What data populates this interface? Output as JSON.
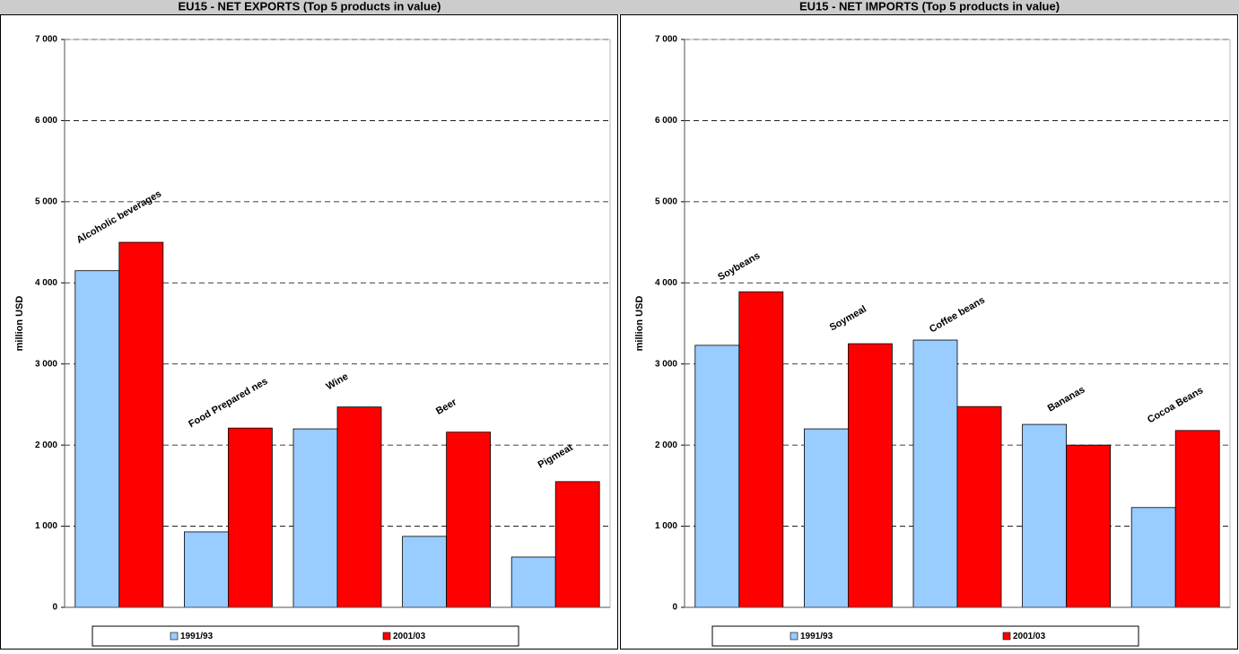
{
  "chart_data": [
    {
      "type": "bar",
      "title": "EU15 - NET EXPORTS (Top 5 products in value)",
      "y_label": "million USD",
      "categories": [
        "Alcoholic beverages",
        "Food Prepared nes",
        "Wine",
        "Beer",
        "Pigmeat"
      ],
      "series": [
        {
          "name": "1991/93",
          "color": "#99ccff",
          "values": [
            4150,
            930,
            2200,
            875,
            620
          ]
        },
        {
          "name": "2001/03",
          "color": "#ff0000",
          "values": [
            4500,
            2210,
            2470,
            2160,
            1550
          ]
        }
      ],
      "ylim": [
        0,
        7000
      ],
      "yticks": [
        0,
        {
          "value": 1000,
          "label": "1 000"
        },
        {
          "value": 2000,
          "label": "2 000"
        },
        {
          "value": 3000,
          "label": "3 000"
        },
        {
          "value": 4000,
          "label": "4 000"
        },
        {
          "value": 5000,
          "label": "5 000"
        },
        {
          "value": 6000,
          "label": "6 000"
        },
        {
          "value": 7000,
          "label": "7 000"
        }
      ],
      "grid": true,
      "legend": "bottom"
    },
    {
      "type": "bar",
      "title": "EU15 - NET IMPORTS (Top 5 products in value)",
      "y_label": "million USD",
      "categories": [
        "Soybeans",
        "Soymeal",
        "Coffee beans",
        "Bananas",
        "Cocoa Beans"
      ],
      "series": [
        {
          "name": "1991/93",
          "color": "#99ccff",
          "values": [
            3230,
            2200,
            3295,
            2255,
            1230
          ]
        },
        {
          "name": "2001/03",
          "color": "#ff0000",
          "values": [
            3890,
            3250,
            2475,
            2000,
            2180
          ]
        }
      ],
      "ylim": [
        0,
        7000
      ],
      "yticks": [
        0,
        {
          "value": 1000,
          "label": "1 000"
        },
        {
          "value": 2000,
          "label": "2 000"
        },
        {
          "value": 3000,
          "label": "3 000"
        },
        {
          "value": 4000,
          "label": "4 000"
        },
        {
          "value": 5000,
          "label": "5 000"
        },
        {
          "value": 6000,
          "label": "6 000"
        },
        {
          "value": 7000,
          "label": "7 000"
        }
      ],
      "grid": true,
      "legend": "bottom"
    }
  ]
}
